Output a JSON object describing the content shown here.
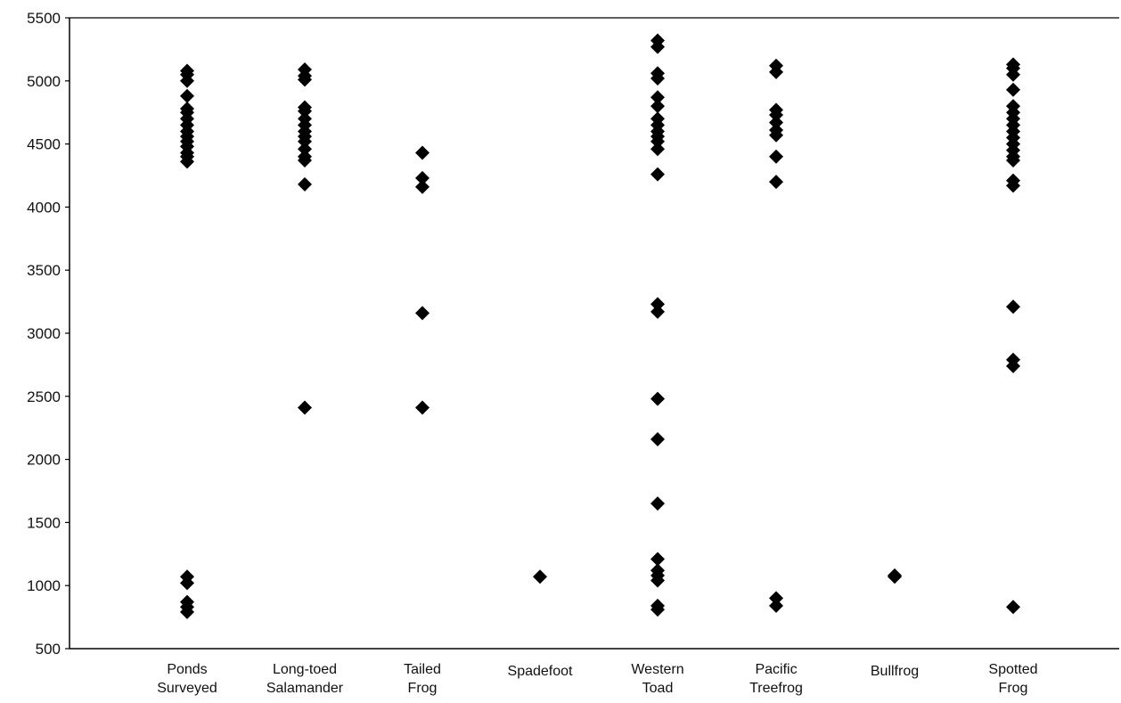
{
  "chart_data": {
    "type": "scatter",
    "title": "",
    "xlabel": "",
    "ylabel": "",
    "ylim": [
      500,
      5500
    ],
    "yticks": [
      500,
      1000,
      1500,
      2000,
      2500,
      3000,
      3500,
      4000,
      4500,
      5000,
      5500
    ],
    "grid": false,
    "legend": "none",
    "marker": "diamond",
    "marker_color": "#000000",
    "categories": [
      {
        "label_lines": [
          "Ponds",
          "Surveyed"
        ],
        "values": [
          5080,
          5050,
          5000,
          4880,
          4780,
          4750,
          4700,
          4650,
          4600,
          4560,
          4520,
          4480,
          4430,
          4400,
          4360,
          1070,
          1020,
          870,
          830,
          790
        ]
      },
      {
        "label_lines": [
          "Long-toed",
          "Salamander"
        ],
        "values": [
          5090,
          5040,
          5010,
          4790,
          4760,
          4700,
          4650,
          4600,
          4560,
          4520,
          4460,
          4400,
          4370,
          4180,
          2410
        ]
      },
      {
        "label_lines": [
          "Tailed",
          "Frog"
        ],
        "values": [
          4430,
          4230,
          4160,
          3160,
          2410
        ]
      },
      {
        "label_lines": [
          "Spadefoot"
        ],
        "values": [
          1070
        ]
      },
      {
        "label_lines": [
          "Western",
          "Toad"
        ],
        "values": [
          5320,
          5270,
          5060,
          5020,
          4870,
          4800,
          4700,
          4650,
          4600,
          4560,
          4520,
          4460,
          4260,
          3230,
          3170,
          2480,
          2160,
          1650,
          1210,
          1120,
          1080,
          1040,
          840,
          810
        ]
      },
      {
        "label_lines": [
          "Pacific",
          "Treefrog"
        ],
        "values": [
          5120,
          5070,
          4770,
          4730,
          4670,
          4610,
          4570,
          4400,
          4200,
          900,
          840
        ]
      },
      {
        "label_lines": [
          "Bullfrog"
        ],
        "values": [
          1080,
          1070
        ]
      },
      {
        "label_lines": [
          "Spotted",
          "Frog"
        ],
        "values": [
          5130,
          5100,
          5050,
          4930,
          4800,
          4750,
          4700,
          4650,
          4600,
          4550,
          4500,
          4450,
          4400,
          4370,
          4210,
          4170,
          3210,
          2790,
          2740,
          830
        ]
      }
    ]
  }
}
